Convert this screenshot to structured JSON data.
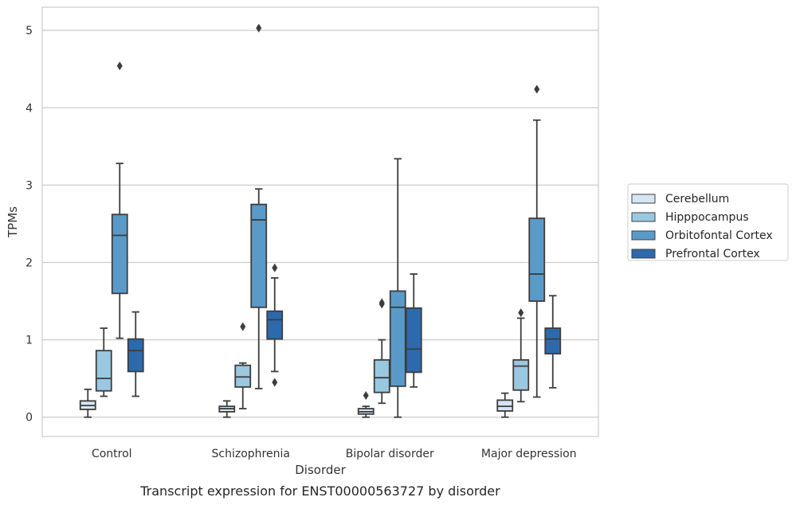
{
  "chart_data": {
    "type": "box",
    "title": "",
    "caption": "Transcript expression for ENST00000563727 by disorder",
    "xlabel": "Disorder",
    "ylabel": "TPMs",
    "ylim": [
      -0.25,
      5.3
    ],
    "yticks": [
      0,
      1,
      2,
      3,
      4,
      5
    ],
    "grid": "horizontal",
    "legend_position": "right",
    "categories": [
      "Control",
      "Schizophrenia",
      "Bipolar disorder",
      "Major depression"
    ],
    "series": [
      {
        "name": "Cerebellum",
        "color": "#d6e5f4",
        "boxes": [
          {
            "whisker_low": 0.0,
            "q1": 0.1,
            "median": 0.15,
            "q3": 0.21,
            "whisker_high": 0.36,
            "outliers": []
          },
          {
            "whisker_low": 0.0,
            "q1": 0.07,
            "median": 0.11,
            "q3": 0.14,
            "whisker_high": 0.21,
            "outliers": []
          },
          {
            "whisker_low": 0.0,
            "q1": 0.04,
            "median": 0.07,
            "q3": 0.11,
            "whisker_high": 0.14,
            "outliers": [
              0.28
            ]
          },
          {
            "whisker_low": 0.0,
            "q1": 0.08,
            "median": 0.14,
            "q3": 0.22,
            "whisker_high": 0.31,
            "outliers": []
          }
        ]
      },
      {
        "name": "Hipppocampus",
        "color": "#9ac8e0",
        "boxes": [
          {
            "whisker_low": 0.27,
            "q1": 0.34,
            "median": 0.5,
            "q3": 0.86,
            "whisker_high": 1.15,
            "outliers": []
          },
          {
            "whisker_low": 0.11,
            "q1": 0.39,
            "median": 0.52,
            "q3": 0.67,
            "whisker_high": 0.7,
            "outliers": [
              1.17
            ]
          },
          {
            "whisker_low": 0.18,
            "q1": 0.32,
            "median": 0.51,
            "q3": 0.74,
            "whisker_high": 1.0,
            "outliers": [
              1.46,
              1.48
            ]
          },
          {
            "whisker_low": 0.2,
            "q1": 0.35,
            "median": 0.66,
            "q3": 0.74,
            "whisker_high": 1.28,
            "outliers": [
              1.35
            ]
          }
        ]
      },
      {
        "name": "Orbitofontal Cortex",
        "color": "#5a9ac9",
        "boxes": [
          {
            "whisker_low": 1.02,
            "q1": 1.6,
            "median": 2.35,
            "q3": 2.62,
            "whisker_high": 3.28,
            "outliers": [
              4.54
            ]
          },
          {
            "whisker_low": 0.37,
            "q1": 1.42,
            "median": 2.55,
            "q3": 2.75,
            "whisker_high": 2.95,
            "outliers": [
              5.03
            ]
          },
          {
            "whisker_low": 0.0,
            "q1": 0.4,
            "median": 1.42,
            "q3": 1.63,
            "whisker_high": 3.34,
            "outliers": []
          },
          {
            "whisker_low": 0.26,
            "q1": 1.5,
            "median": 1.85,
            "q3": 2.57,
            "whisker_high": 3.84,
            "outliers": [
              4.24
            ]
          }
        ]
      },
      {
        "name": "Prefrontal Cortex",
        "color": "#2d6aad",
        "boxes": [
          {
            "whisker_low": 0.27,
            "q1": 0.59,
            "median": 0.86,
            "q3": 1.01,
            "whisker_high": 1.36,
            "outliers": []
          },
          {
            "whisker_low": 0.59,
            "q1": 1.01,
            "median": 1.26,
            "q3": 1.37,
            "whisker_high": 1.8,
            "outliers": [
              1.93,
              0.45
            ]
          },
          {
            "whisker_low": 0.39,
            "q1": 0.58,
            "median": 0.88,
            "q3": 1.41,
            "whisker_high": 1.85,
            "outliers": []
          },
          {
            "whisker_low": 0.38,
            "q1": 0.82,
            "median": 1.01,
            "q3": 1.15,
            "whisker_high": 1.57,
            "outliers": []
          }
        ]
      }
    ]
  }
}
